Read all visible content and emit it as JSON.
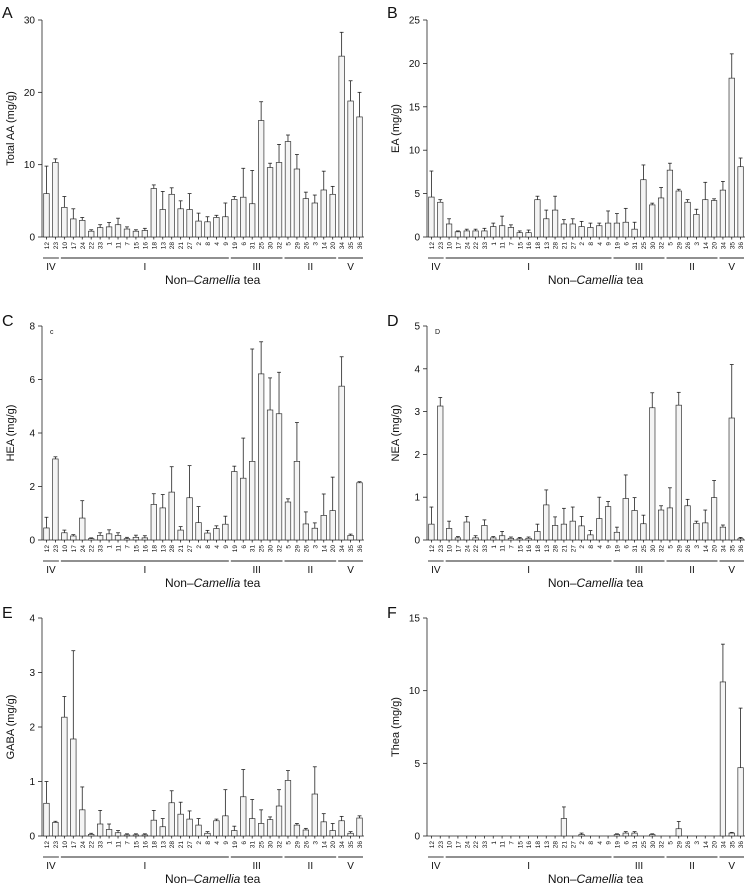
{
  "figure": {
    "width": 750,
    "height": 884
  },
  "chart_data": [
    {
      "type": "bar",
      "panel_letter": "A",
      "ylabel": "Total AA (mg/g)",
      "xlabel": "Non–Camellia tea",
      "ylim": [
        0,
        30
      ],
      "yticks": [
        "0",
        "10",
        "20",
        "30"
      ],
      "categories": [
        "12",
        "23",
        "10",
        "17",
        "24",
        "22",
        "33",
        "1",
        "11",
        "7",
        "15",
        "16",
        "18",
        "13",
        "28",
        "21",
        "27",
        "2",
        "8",
        "4",
        "9",
        "19",
        "6",
        "31",
        "25",
        "30",
        "32",
        "5",
        "29",
        "26",
        "3",
        "14",
        "20",
        "34",
        "35",
        "36"
      ],
      "values": [
        6,
        10.3,
        4.1,
        2.5,
        2.3,
        0.8,
        1.3,
        1.4,
        1.7,
        1.1,
        0.8,
        0.9,
        6.7,
        3.8,
        5.9,
        3.9,
        3.8,
        2.2,
        2.1,
        2.7,
        2.8,
        5.2,
        5.5,
        4.6,
        16.1,
        9.6,
        10.3,
        13.2,
        9.4,
        5.3,
        4.7,
        6.5,
        5.9,
        25,
        18.8,
        16.6
      ],
      "errors": [
        3.8,
        0.5,
        1.5,
        1.4,
        0.4,
        0.2,
        0.4,
        0.6,
        0.9,
        0.3,
        0.2,
        0.3,
        0.5,
        2.5,
        0.9,
        1.1,
        2.2,
        1.1,
        0.7,
        0.3,
        1.9,
        0.4,
        4,
        4.6,
        2.6,
        0.6,
        2.5,
        0.9,
        2,
        0.9,
        1.1,
        2.6,
        1.1,
        3.3,
        2.8,
        3.4
      ],
      "groups": [
        {
          "label": "IV",
          "start": 0,
          "end": 1
        },
        {
          "label": "I",
          "start": 2,
          "end": 20
        },
        {
          "label": "III",
          "start": 21,
          "end": 26
        },
        {
          "label": "II",
          "start": 27,
          "end": 32
        },
        {
          "label": "V",
          "start": 33,
          "end": 35
        }
      ]
    },
    {
      "type": "bar",
      "panel_letter": "B",
      "ylabel": "EA (mg/g)",
      "xlabel": "Non–Camellia tea",
      "ylim": [
        0,
        25
      ],
      "yticks": [
        "0",
        "5",
        "10",
        "15",
        "20",
        "25"
      ],
      "categories": [
        "12",
        "23",
        "10",
        "17",
        "24",
        "22",
        "33",
        "1",
        "11",
        "7",
        "15",
        "16",
        "18",
        "13",
        "28",
        "21",
        "27",
        "2",
        "8",
        "4",
        "9",
        "19",
        "6",
        "31",
        "25",
        "30",
        "32",
        "5",
        "29",
        "26",
        "3",
        "14",
        "20",
        "34",
        "35",
        "36"
      ],
      "values": [
        4.6,
        4,
        1.5,
        0.6,
        0.7,
        0.7,
        0.7,
        1.2,
        1.3,
        1.1,
        0.5,
        0.5,
        4.3,
        2.1,
        3.1,
        1.5,
        1.5,
        1.2,
        1.1,
        1.3,
        1.6,
        1.6,
        1.7,
        0.9,
        6.6,
        3.7,
        4.5,
        7.7,
        5.3,
        4,
        2.6,
        4.3,
        4.2,
        5.4,
        18.3,
        8.1
      ],
      "errors": [
        3,
        0.3,
        0.6,
        0.1,
        0.2,
        0.2,
        0.3,
        0.4,
        1.1,
        0.3,
        0.2,
        0.3,
        0.4,
        1,
        1.6,
        0.5,
        0.6,
        0.6,
        0.5,
        0.3,
        1.4,
        1.1,
        1.6,
        0.8,
        1.7,
        0.2,
        1.2,
        0.8,
        0.2,
        0.3,
        0.6,
        2,
        0.2,
        1,
        2.8,
        1
      ],
      "groups": [
        {
          "label": "IV",
          "start": 0,
          "end": 1
        },
        {
          "label": "I",
          "start": 2,
          "end": 20
        },
        {
          "label": "III",
          "start": 21,
          "end": 26
        },
        {
          "label": "II",
          "start": 27,
          "end": 32
        },
        {
          "label": "V",
          "start": 33,
          "end": 35
        }
      ]
    },
    {
      "type": "bar",
      "panel_letter": "C",
      "inner_letter": "c",
      "ylabel": "HEA (mg/g)",
      "xlabel": "Non–Camellia tea",
      "ylim": [
        0,
        8
      ],
      "yticks": [
        "0",
        "2",
        "4",
        "6",
        "8"
      ],
      "categories": [
        "12",
        "23",
        "10",
        "17",
        "24",
        "22",
        "33",
        "1",
        "11",
        "7",
        "15",
        "16",
        "18",
        "13",
        "28",
        "21",
        "27",
        "2",
        "8",
        "4",
        "9",
        "19",
        "6",
        "31",
        "25",
        "30",
        "32",
        "5",
        "29",
        "26",
        "3",
        "14",
        "20",
        "34",
        "35",
        "36"
      ],
      "values": [
        0.45,
        3.03,
        0.27,
        0.15,
        0.82,
        0.05,
        0.17,
        0.23,
        0.17,
        0.05,
        0.1,
        0.08,
        1.33,
        1.2,
        1.79,
        0.37,
        1.58,
        0.65,
        0.26,
        0.43,
        0.59,
        2.56,
        2.31,
        2.94,
        6.21,
        4.86,
        4.72,
        1.42,
        2.94,
        0.6,
        0.44,
        0.92,
        1.1,
        5.75,
        0.17,
        2.14
      ],
      "errors": [
        0.4,
        0.08,
        0.1,
        0.05,
        0.65,
        0.03,
        0.1,
        0.15,
        0.1,
        0.05,
        0.08,
        0.08,
        0.4,
        0.5,
        0.95,
        0.13,
        1.2,
        0.6,
        0.1,
        0.1,
        0.3,
        0.2,
        1.5,
        4.2,
        1.2,
        1.2,
        1.55,
        0.12,
        1.45,
        0.45,
        0.2,
        0.8,
        1.25,
        1.1,
        0.05,
        0.04
      ],
      "groups": [
        {
          "label": "IV",
          "start": 0,
          "end": 1
        },
        {
          "label": "I",
          "start": 2,
          "end": 20
        },
        {
          "label": "III",
          "start": 21,
          "end": 26
        },
        {
          "label": "II",
          "start": 27,
          "end": 32
        },
        {
          "label": "V",
          "start": 33,
          "end": 35
        }
      ]
    },
    {
      "type": "bar",
      "panel_letter": "D",
      "inner_letter": "D",
      "ylabel": "NEA (mg/g)",
      "xlabel": "Non–Camellia tea",
      "ylim": [
        0,
        5
      ],
      "yticks": [
        "0",
        "1",
        "2",
        "3",
        "4",
        "5"
      ],
      "categories": [
        "12",
        "23",
        "10",
        "17",
        "24",
        "22",
        "33",
        "1",
        "11",
        "7",
        "15",
        "16",
        "18",
        "13",
        "28",
        "21",
        "27",
        "2",
        "8",
        "4",
        "9",
        "19",
        "6",
        "31",
        "25",
        "30",
        "32",
        "5",
        "29",
        "26",
        "3",
        "14",
        "20",
        "34",
        "35",
        "36"
      ],
      "values": [
        0.37,
        3.13,
        0.27,
        0.05,
        0.42,
        0.05,
        0.34,
        0.05,
        0.1,
        0.04,
        0.03,
        0.04,
        0.2,
        0.82,
        0.34,
        0.37,
        0.44,
        0.33,
        0.12,
        0.5,
        0.78,
        0.18,
        0.97,
        0.69,
        0.38,
        3.09,
        0.7,
        0.75,
        3.15,
        0.8,
        0.39,
        0.4,
        0.99,
        0.3,
        2.85,
        0.03
      ],
      "errors": [
        0.4,
        0.2,
        0.17,
        0.03,
        0.13,
        0.05,
        0.13,
        0.03,
        0.1,
        0.03,
        0.03,
        0.03,
        0.17,
        0.35,
        0.2,
        0.37,
        0.33,
        0.22,
        0.1,
        0.5,
        0.12,
        0.12,
        0.55,
        0.3,
        0.2,
        0.35,
        0.1,
        0.47,
        0.3,
        0.15,
        0.05,
        0.3,
        0.4,
        0.05,
        1.25,
        0.03
      ],
      "groups": [
        {
          "label": "IV",
          "start": 0,
          "end": 1
        },
        {
          "label": "I",
          "start": 2,
          "end": 20
        },
        {
          "label": "III",
          "start": 21,
          "end": 26
        },
        {
          "label": "II",
          "start": 27,
          "end": 32
        },
        {
          "label": "V",
          "start": 33,
          "end": 35
        }
      ]
    },
    {
      "type": "bar",
      "panel_letter": "E",
      "ylabel": "GABA (mg/g)",
      "xlabel": "Non–Camellia tea",
      "ylim": [
        0,
        4
      ],
      "yticks": [
        "0",
        "1",
        "2",
        "3",
        "4"
      ],
      "categories": [
        "12",
        "23",
        "10",
        "17",
        "24",
        "22",
        "33",
        "1",
        "11",
        "7",
        "15",
        "16",
        "18",
        "13",
        "28",
        "21",
        "27",
        "2",
        "8",
        "4",
        "9",
        "19",
        "6",
        "31",
        "25",
        "30",
        "32",
        "5",
        "29",
        "26",
        "3",
        "14",
        "20",
        "34",
        "35",
        "36"
      ],
      "values": [
        0.6,
        0.25,
        2.18,
        1.78,
        0.48,
        0.03,
        0.22,
        0.12,
        0.06,
        0.02,
        0.02,
        0.02,
        0.29,
        0.17,
        0.61,
        0.4,
        0.31,
        0.2,
        0.05,
        0.28,
        0.37,
        0.1,
        0.72,
        0.32,
        0.23,
        0.3,
        0.55,
        1.02,
        0.2,
        0.11,
        0.77,
        0.26,
        0.1,
        0.28,
        0.05,
        0.33
      ],
      "errors": [
        0.4,
        0.02,
        0.38,
        1.62,
        0.42,
        0.02,
        0.25,
        0.1,
        0.04,
        0.02,
        0.02,
        0.02,
        0.18,
        0.15,
        0.22,
        0.22,
        0.15,
        0.12,
        0.03,
        0.03,
        0.48,
        0.08,
        0.5,
        0.35,
        0.25,
        0.05,
        0.3,
        0.18,
        0.03,
        0.03,
        0.5,
        0.15,
        0.13,
        0.08,
        0.03,
        0.04
      ],
      "groups": [
        {
          "label": "IV",
          "start": 0,
          "end": 1
        },
        {
          "label": "I",
          "start": 2,
          "end": 20
        },
        {
          "label": "III",
          "start": 21,
          "end": 26
        },
        {
          "label": "II",
          "start": 27,
          "end": 32
        },
        {
          "label": "V",
          "start": 33,
          "end": 35
        }
      ]
    },
    {
      "type": "bar",
      "panel_letter": "F",
      "ylabel": "Thea (mg/g)",
      "xlabel": "Non–Camellia tea",
      "ylim": [
        0,
        15
      ],
      "yticks": [
        "0",
        "5",
        "10",
        "15"
      ],
      "categories": [
        "12",
        "23",
        "10",
        "17",
        "24",
        "22",
        "33",
        "1",
        "11",
        "7",
        "15",
        "16",
        "18",
        "13",
        "28",
        "21",
        "27",
        "2",
        "8",
        "4",
        "9",
        "19",
        "6",
        "31",
        "25",
        "30",
        "32",
        "5",
        "29",
        "26",
        "3",
        "14",
        "20",
        "34",
        "35",
        "36"
      ],
      "values": [
        0,
        0,
        0,
        0,
        0,
        0,
        0,
        0,
        0,
        0,
        0,
        0,
        0,
        0,
        0,
        1.2,
        0,
        0.1,
        0,
        0,
        0,
        0.1,
        0.2,
        0.2,
        0,
        0.1,
        0,
        0,
        0.5,
        0,
        0,
        0,
        0,
        10.6,
        0.2,
        4.7
      ],
      "errors": [
        0,
        0,
        0,
        0,
        0,
        0,
        0,
        0,
        0,
        0,
        0,
        0,
        0,
        0,
        0,
        0.8,
        0,
        0.1,
        0,
        0,
        0,
        0.05,
        0.1,
        0.1,
        0,
        0.05,
        0,
        0,
        0.5,
        0,
        0,
        0,
        0,
        2.6,
        0.05,
        4.1
      ],
      "groups": [
        {
          "label": "IV",
          "start": 0,
          "end": 1
        },
        {
          "label": "I",
          "start": 2,
          "end": 20
        },
        {
          "label": "III",
          "start": 21,
          "end": 26
        },
        {
          "label": "II",
          "start": 27,
          "end": 32
        },
        {
          "label": "V",
          "start": 33,
          "end": 35
        }
      ]
    }
  ]
}
